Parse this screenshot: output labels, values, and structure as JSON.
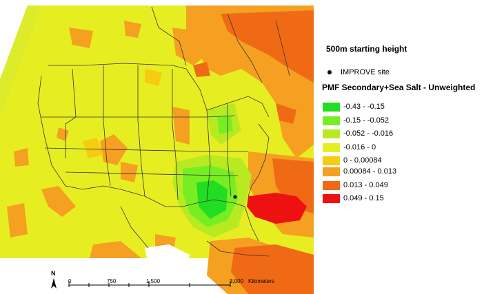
{
  "map": {
    "title": "500m starting height",
    "site_label": "IMPROVE site",
    "layer_title": "PMF Secondary+Sea Salt - Unweighted",
    "classes": [
      {
        "label": "-0.43 - -0.15",
        "color": "#22dd22"
      },
      {
        "label": "-0.15 - -0.052",
        "color": "#77ee22"
      },
      {
        "label": "-0.052 - -0.016",
        "color": "#b8ea22"
      },
      {
        "label": "-0.016 - 0",
        "color": "#e6ee22"
      },
      {
        "label": "0 - 0.00084",
        "color": "#f5cc11"
      },
      {
        "label": "0.00084 - 0.013",
        "color": "#f5a020"
      },
      {
        "label": "0.013 - 0.049",
        "color": "#f06a16"
      },
      {
        "label": "0.049 - 0.15",
        "color": "#ee1111"
      }
    ],
    "north_label": "N",
    "scale": {
      "ticks": [
        "0",
        "750",
        "1,500",
        "3,000"
      ],
      "unit": "Kilometers"
    }
  }
}
